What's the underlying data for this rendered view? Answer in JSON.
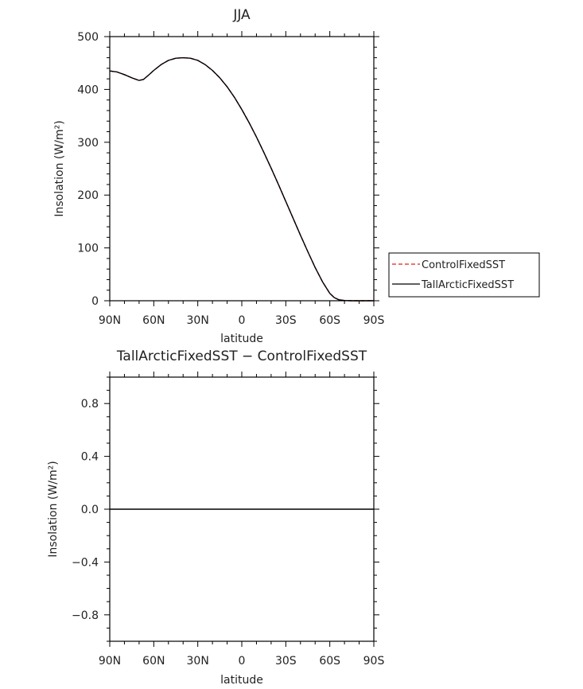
{
  "chart_data": [
    {
      "type": "line",
      "title": "JJA",
      "xlabel": "latitude",
      "ylabel": "Insolation (W/m²)",
      "xlim": [
        90,
        -90
      ],
      "ylim": [
        0,
        500
      ],
      "x_ticks": [
        90,
        60,
        30,
        0,
        -30,
        -60,
        -90
      ],
      "x_tick_labels": [
        "90N",
        "60N",
        "30N",
        "0",
        "30S",
        "60S",
        "90S"
      ],
      "y_ticks": [
        0,
        100,
        200,
        300,
        400,
        500
      ],
      "y_tick_labels": [
        "0",
        "100",
        "200",
        "300",
        "400",
        "500"
      ],
      "legend_position": "right",
      "x": [
        90,
        85,
        80,
        75,
        70,
        67,
        64,
        60,
        55,
        50,
        45,
        40,
        35,
        30,
        25,
        20,
        15,
        10,
        5,
        0,
        -5,
        -10,
        -15,
        -20,
        -25,
        -30,
        -35,
        -40,
        -45,
        -50,
        -55,
        -60,
        -63,
        -66,
        -70,
        -75,
        -80,
        -85,
        -90
      ],
      "series": [
        {
          "name": "ControlFixedSST",
          "color": "#dd2222",
          "dash": "dashed",
          "values": [
            435,
            433,
            428,
            422,
            417,
            419,
            426,
            436,
            447,
            455,
            459,
            460,
            459,
            455,
            447,
            436,
            422,
            405,
            385,
            362,
            337,
            310,
            281,
            251,
            220,
            188,
            156,
            124,
            93,
            63,
            36,
            14,
            6,
            2,
            0.5,
            0,
            0,
            0,
            0
          ]
        },
        {
          "name": "TallArcticFixedSST",
          "color": "#000000",
          "dash": "solid",
          "values": [
            435,
            433,
            428,
            422,
            417,
            419,
            426,
            436,
            447,
            455,
            459,
            460,
            459,
            455,
            447,
            436,
            422,
            405,
            385,
            362,
            337,
            310,
            281,
            251,
            220,
            188,
            156,
            124,
            93,
            63,
            36,
            14,
            6,
            2,
            0.5,
            0,
            0,
            0,
            0
          ]
        }
      ]
    },
    {
      "type": "line",
      "title": "TallArcticFixedSST − ControlFixedSST",
      "xlabel": "latitude",
      "ylabel": "Insolation (W/m²)",
      "xlim": [
        90,
        -90
      ],
      "ylim": [
        -1,
        1
      ],
      "x_ticks": [
        90,
        60,
        30,
        0,
        -30,
        -60,
        -90
      ],
      "x_tick_labels": [
        "90N",
        "60N",
        "30N",
        "0",
        "30S",
        "60S",
        "90S"
      ],
      "y_ticks": [
        -0.8,
        -0.4,
        0.0,
        0.4,
        0.8
      ],
      "y_tick_labels": [
        "−0.8",
        "−0.4",
        "0.0",
        "0.4",
        "0.8"
      ],
      "x": [
        90,
        -90
      ],
      "series": [
        {
          "color": "#000000",
          "dash": "solid",
          "values": [
            0,
            0
          ]
        }
      ]
    }
  ]
}
